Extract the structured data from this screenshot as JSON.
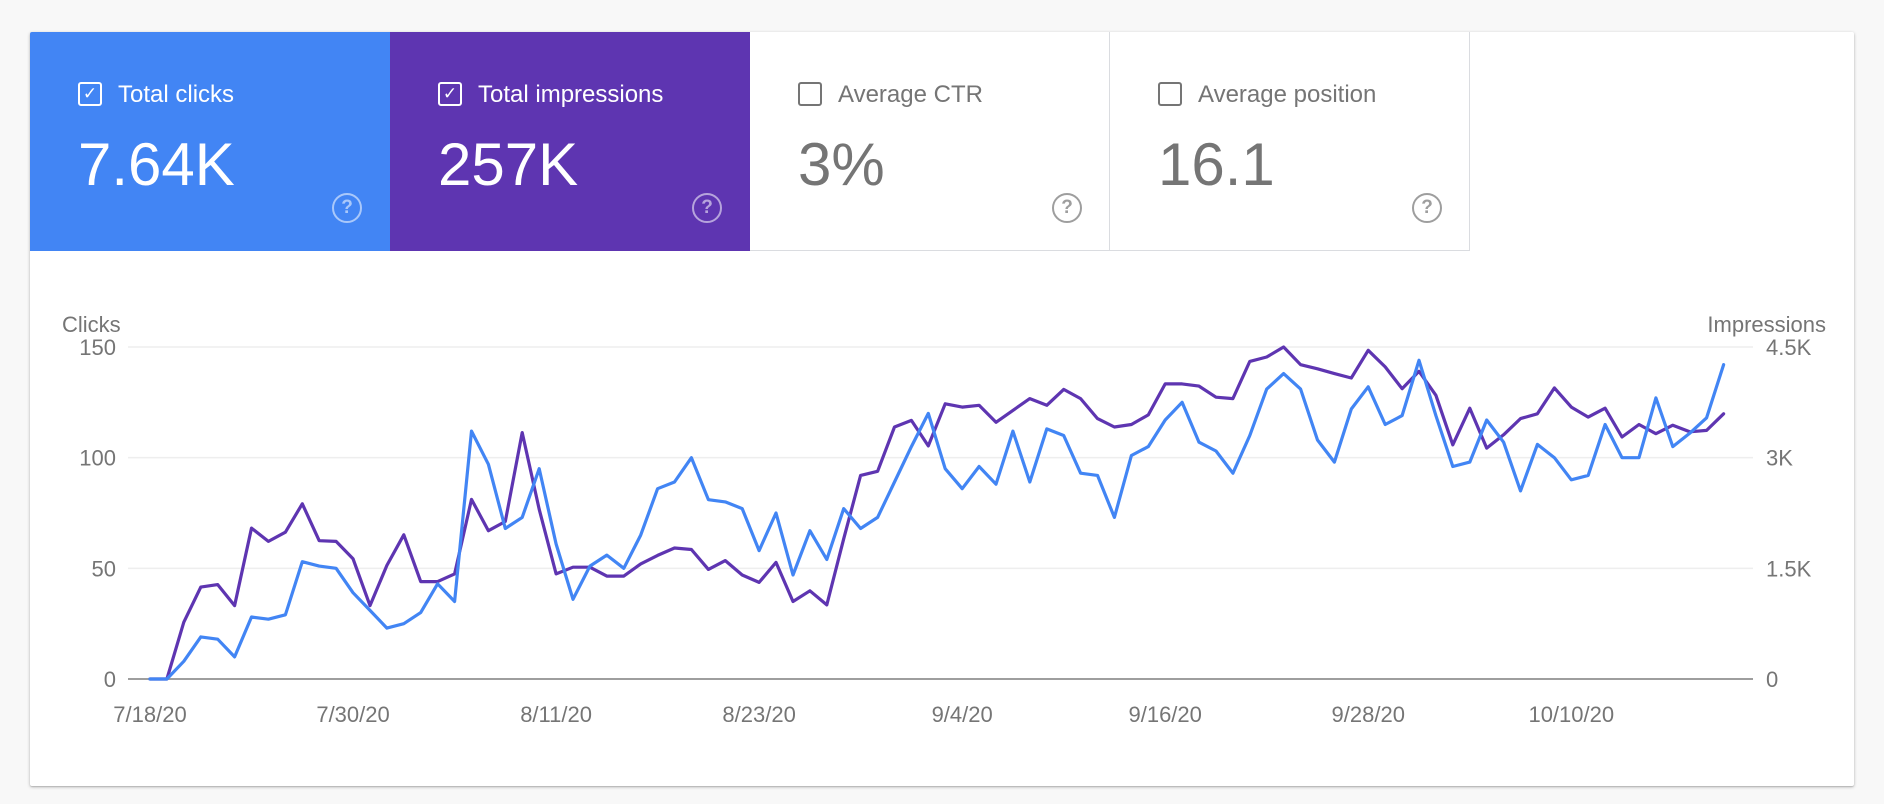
{
  "metrics": [
    {
      "label": "Total clicks",
      "value": "7.64K",
      "checked": true,
      "color": "#4285f4",
      "icon": "checkbox-checked-icon",
      "help_icon": "help-circle-icon"
    },
    {
      "label": "Total impressions",
      "value": "257K",
      "checked": true,
      "color": "#5e35b1",
      "icon": "checkbox-checked-icon",
      "help_icon": "help-circle-icon"
    },
    {
      "label": "Average CTR",
      "value": "3%",
      "checked": false,
      "color": "#ffffff",
      "icon": "checkbox-empty-icon",
      "help_icon": "help-circle-icon"
    },
    {
      "label": "Average position",
      "value": "16.1",
      "checked": false,
      "color": "#ffffff",
      "icon": "checkbox-empty-icon",
      "help_icon": "help-circle-icon"
    }
  ],
  "help_glyph": "?",
  "check_glyph": "✓",
  "chart_data": {
    "type": "line",
    "title": "",
    "ylabel_left": "Clicks",
    "ylabel_right": "Impressions",
    "xlabel": "",
    "grid": true,
    "left_axis": {
      "ylim": [
        0,
        150
      ],
      "ticks": [
        0,
        50,
        100,
        150
      ],
      "tick_labels": [
        "0",
        "50",
        "100",
        "150"
      ]
    },
    "right_axis": {
      "ylim": [
        0,
        4500
      ],
      "ticks": [
        0,
        1500,
        3000,
        4500
      ],
      "tick_labels": [
        "0",
        "1.5K",
        "3K",
        "4.5K"
      ]
    },
    "x_start": "7/18/20",
    "x_end": "10/19/20",
    "x_step_days": 1,
    "x_tick_labels": [
      "7/18/20",
      "7/30/20",
      "8/11/20",
      "8/23/20",
      "9/4/20",
      "9/16/20",
      "9/28/20",
      "10/10/20"
    ],
    "x_tick_every": 12,
    "series": [
      {
        "name": "Clicks",
        "axis": "left",
        "color": "#4285f4",
        "values": [
          0,
          0,
          8,
          19,
          18,
          10,
          28,
          27,
          29,
          53,
          51,
          50,
          39,
          31,
          23,
          25,
          30,
          43,
          35,
          112,
          97,
          68,
          73,
          95,
          61,
          36,
          51,
          56,
          50,
          65,
          86,
          89,
          100,
          81,
          80,
          77,
          58,
          75,
          47,
          67,
          54,
          77,
          68,
          73,
          89,
          105,
          120,
          95,
          86,
          96,
          88,
          112,
          89,
          113,
          110,
          93,
          92,
          73,
          101,
          105,
          117,
          125,
          107,
          103,
          93,
          110,
          131,
          138,
          131,
          108,
          98,
          122,
          132,
          115,
          119,
          144,
          119,
          96,
          98,
          117,
          107,
          85,
          106,
          100,
          90,
          92,
          115,
          100,
          100,
          127,
          105,
          111,
          118,
          142
        ]
      },
      {
        "name": "Impressions",
        "axis": "right",
        "color": "#5e35b1",
        "values": [
          0,
          0,
          770,
          1245,
          1280,
          995,
          2045,
          1865,
          1990,
          2375,
          1875,
          1865,
          1630,
          995,
          1540,
          1955,
          1320,
          1320,
          1425,
          2435,
          2010,
          2135,
          3340,
          2300,
          1425,
          1515,
          1515,
          1395,
          1395,
          1560,
          1675,
          1775,
          1755,
          1485,
          1605,
          1410,
          1310,
          1580,
          1050,
          1195,
          1005,
          1900,
          2760,
          2815,
          3415,
          3505,
          3160,
          3730,
          3685,
          3710,
          3480,
          3640,
          3800,
          3710,
          3925,
          3800,
          3530,
          3415,
          3450,
          3580,
          4000,
          4000,
          3970,
          3820,
          3800,
          4305,
          4365,
          4500,
          4260,
          4205,
          4140,
          4080,
          4455,
          4230,
          3935,
          4170,
          3845,
          3175,
          3670,
          3130,
          3310,
          3530,
          3595,
          3945,
          3685,
          3550,
          3670,
          3280,
          3450,
          3325,
          3440,
          3350,
          3370,
          3595
        ]
      }
    ]
  }
}
